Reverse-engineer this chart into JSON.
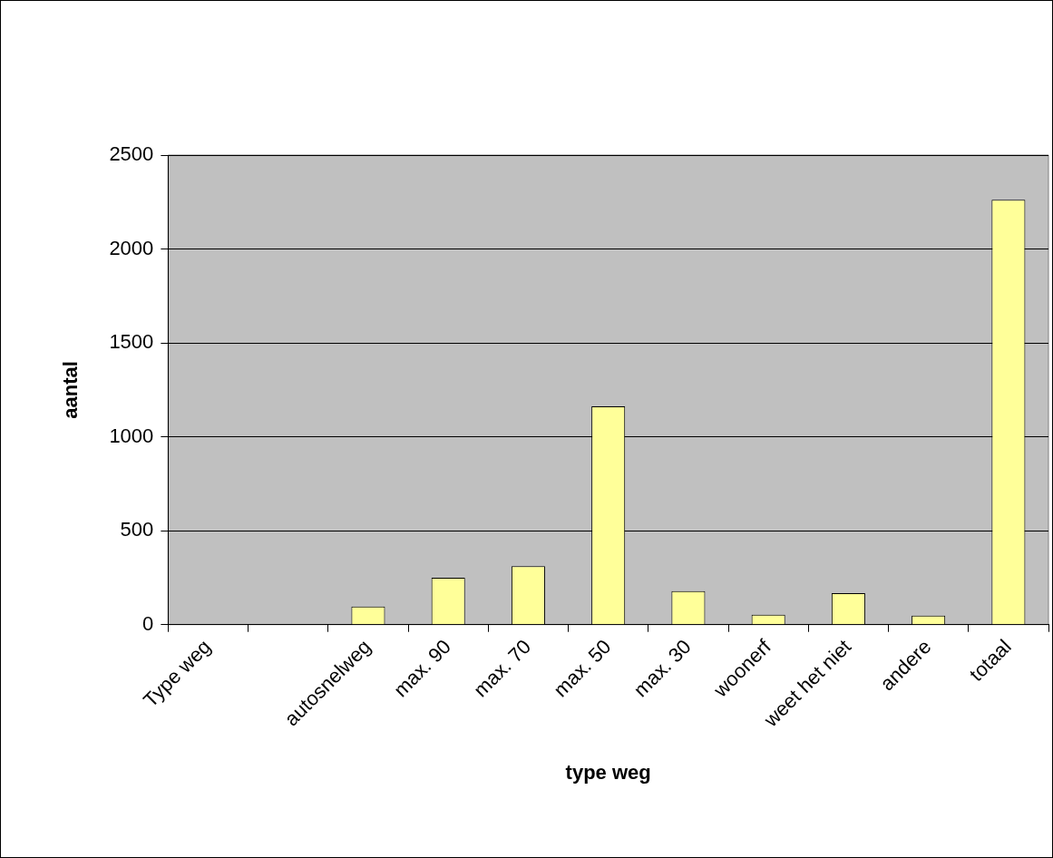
{
  "chart_data": {
    "type": "bar",
    "xlabel": "type weg",
    "ylabel": "aantal",
    "categories": [
      "Type weg",
      null,
      "autosnelweg",
      "max. 90",
      "max. 70",
      "max. 50",
      "max. 30",
      "woonerf",
      "weet het niet",
      "andere",
      "totaal"
    ],
    "values": [
      null,
      null,
      97,
      250,
      311,
      1163,
      179,
      53,
      168,
      48,
      2262
    ],
    "color": "#ffff99",
    "ylim": [
      0,
      2500
    ],
    "yticks": [
      0,
      500,
      1000,
      1500,
      2000,
      2500
    ],
    "grid": "y",
    "legend": false
  }
}
